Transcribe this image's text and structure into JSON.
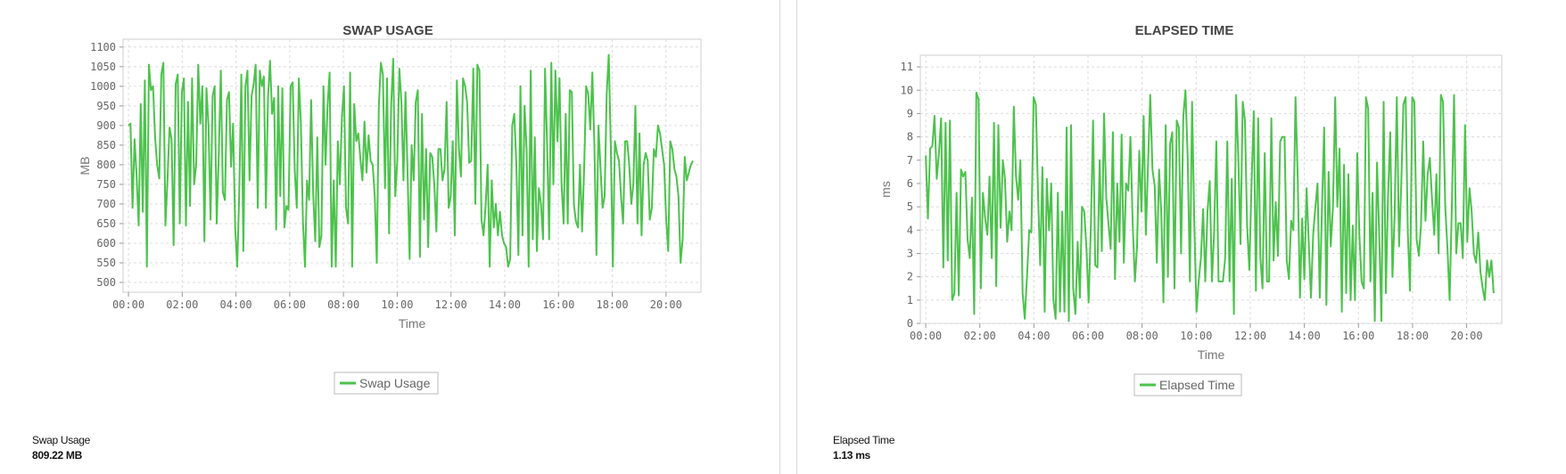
{
  "colors": {
    "series": "#4cc24c",
    "grid": "#dcdcdc"
  },
  "chart_data": [
    {
      "type": "line",
      "title": "SWAP USAGE",
      "xlabel": "Time",
      "ylabel": "MB",
      "x_ticks": [
        "00:00",
        "02:00",
        "04:00",
        "06:00",
        "08:00",
        "10:00",
        "12:00",
        "14:00",
        "16:00",
        "18:00",
        "20:00"
      ],
      "y_ticks": [
        "500",
        "550",
        "600",
        "650",
        "700",
        "750",
        "800",
        "850",
        "900",
        "950",
        "1000",
        "1050",
        "1100"
      ],
      "x_range_hours": [
        -0.2,
        21.3
      ],
      "ylim": [
        475,
        1120
      ],
      "grid": true,
      "legend": "bottom",
      "series": [
        {
          "name": "Swap Usage",
          "values": [
            900,
            905,
            690,
            865,
            770,
            645,
            955,
            680,
            1015,
            540,
            1055,
            990,
            1000,
            870,
            800,
            765,
            1030,
            1060,
            645,
            760,
            895,
            865,
            595,
            1005,
            1030,
            650,
            985,
            1020,
            645,
            960,
            695,
            1020,
            750,
            800,
            1055,
            905,
            1000,
            605,
            995,
            900,
            660,
            975,
            1000,
            650,
            825,
            1040,
            730,
            710,
            965,
            985,
            795,
            905,
            640,
            540,
            730,
            1030,
            580,
            1000,
            1040,
            760,
            975,
            1005,
            1055,
            690,
            1040,
            1000,
            1025,
            690,
            970,
            1065,
            930,
            970,
            635,
            1000,
            720,
            995,
            640,
            695,
            685,
            1000,
            1010,
            785,
            690,
            1020,
            905,
            655,
            540,
            760,
            710,
            965,
            725,
            605,
            870,
            590,
            620,
            1000,
            800,
            950,
            1035,
            540,
            760,
            540,
            860,
            750,
            920,
            1000,
            690,
            650,
            1035,
            540,
            955,
            860,
            880,
            815,
            760,
            910,
            780,
            875,
            810,
            800,
            720,
            550,
            950,
            1060,
            1030,
            740,
            1020,
            625,
            950,
            1070,
            720,
            810,
            1045,
            960,
            760,
            985,
            780,
            560,
            850,
            760,
            960,
            990,
            565,
            930,
            660,
            840,
            590,
            830,
            820,
            750,
            630,
            840,
            840,
            760,
            790,
            960,
            690,
            720,
            860,
            620,
            1015,
            840,
            770,
            1020,
            1000,
            960,
            805,
            810,
            1045,
            700,
            1055,
            1040,
            660,
            620,
            695,
            800,
            540,
            760,
            640,
            700,
            620,
            680,
            620,
            600,
            590,
            540,
            560,
            900,
            930,
            800,
            570,
            1000,
            620,
            950,
            840,
            540,
            1040,
            610,
            870,
            580,
            740,
            700,
            610,
            1045,
            850,
            610,
            1060,
            750,
            1040,
            860,
            1020,
            750,
            650,
            930,
            650,
            990,
            985,
            700,
            655,
            640,
            800,
            630,
            790,
            1000,
            980,
            890,
            1035,
            850,
            570,
            900,
            790,
            690,
            720,
            980,
            1080,
            850,
            540,
            860,
            830,
            810,
            720,
            650,
            860,
            860,
            800,
            700,
            750,
            950,
            650,
            880,
            620,
            800,
            830,
            810,
            660,
            690,
            840,
            820,
            900,
            880,
            840,
            800,
            660,
            580,
            860,
            840,
            790,
            770,
            720,
            550,
            610,
            820,
            760,
            780,
            800,
            810
          ]
        }
      ]
    },
    {
      "type": "line",
      "title": "ELAPSED TIME",
      "xlabel": "Time",
      "ylabel": "ms",
      "x_ticks": [
        "00:00",
        "02:00",
        "04:00",
        "06:00",
        "08:00",
        "10:00",
        "12:00",
        "14:00",
        "16:00",
        "18:00",
        "20:00"
      ],
      "y_ticks": [
        "0",
        "1",
        "2",
        "3",
        "4",
        "5",
        "6",
        "7",
        "8",
        "9",
        "10",
        "11"
      ],
      "x_range_hours": [
        -0.2,
        21.3
      ],
      "ylim": [
        0,
        11.5
      ],
      "grid": true,
      "legend": "bottom",
      "series": [
        {
          "name": "Elapsed Time",
          "values": [
            7.2,
            4.5,
            7.5,
            7.6,
            8.9,
            6.2,
            7.3,
            8.8,
            2.4,
            8.6,
            2.7,
            8.7,
            1.0,
            1.3,
            5.6,
            1.2,
            6.6,
            6.3,
            6.5,
            3.6,
            2.8,
            5.4,
            0.4,
            9.9,
            9.6,
            1.5,
            5.6,
            4.5,
            3.8,
            6.3,
            2.8,
            8.6,
            1.6,
            8.5,
            4.1,
            7.0,
            6.2,
            3.5,
            4.8,
            4.0,
            9.3,
            6.3,
            5.3,
            7.0,
            1.3,
            0.2,
            2.0,
            4.0,
            3.9,
            9.7,
            9.4,
            5.5,
            2.5,
            6.7,
            0.5,
            6.2,
            4.0,
            6.0,
            1.0,
            0.2,
            5.6,
            0.5,
            4.8,
            0.5,
            8.4,
            0.1,
            8.5,
            1.5,
            0.4,
            3.5,
            1.1,
            5.0,
            4.8,
            3.2,
            0.9,
            4.1,
            8.7,
            2.5,
            2.4,
            7.0,
            3.1,
            9.0,
            5.4,
            4.3,
            3.2,
            8.2,
            1.9,
            6.0,
            3.5,
            8.1,
            2.6,
            6.0,
            5.7,
            8.0,
            4.3,
            1.8,
            3.3,
            7.4,
            4.8,
            8.9,
            3.8,
            6.9,
            9.8,
            6.6,
            5.9,
            2.6,
            6.6,
            4.7,
            0.9,
            8.5,
            2.0,
            7.7,
            8.2,
            1.5,
            8.7,
            8.4,
            3.0,
            8.9,
            10.0,
            7.1,
            1.8,
            9.5,
            4.3,
            0.5,
            1.8,
            2.8,
            4.9,
            1.8,
            4.8,
            6.1,
            1.8,
            3.9,
            7.8,
            1.8,
            1.8,
            1.8,
            2.8,
            7.8,
            1.8,
            6.2,
            0.4,
            9.8,
            7.1,
            3.4,
            9.5,
            8.7,
            4.2,
            2.3,
            6.0,
            9.1,
            1.4,
            8.8,
            2.8,
            1.5,
            7.3,
            1.8,
            1.8,
            8.8,
            2.7,
            5.2,
            2.9,
            7.8,
            8.0,
            8.0,
            2.7,
            1.9,
            4.4,
            4.0,
            9.7,
            6.2,
            1.1,
            4.5,
            1.9,
            5.8,
            3.4,
            1.1,
            3.8,
            5.0,
            6.0,
            1.1,
            5.0,
            8.4,
            0.8,
            6.5,
            3.3,
            5.0,
            9.7,
            5.0,
            7.5,
            0.5,
            6.8,
            1.3,
            6.4,
            1.0,
            4.2,
            1.0,
            7.3,
            3.8,
            1.8,
            1.5,
            9.7,
            9.2,
            1.8,
            5.6,
            0.1,
            6.9,
            3.9,
            0.1,
            9.5,
            1.3,
            5.4,
            8.2,
            2.0,
            4.6,
            9.7,
            3.3,
            5.9,
            9.4,
            9.7,
            3.9,
            1.4,
            9.7,
            9.5,
            3.6,
            2.9,
            4.2,
            7.8,
            4.4,
            6.4,
            7.1,
            5.3,
            3.8,
            6.4,
            3.0,
            9.8,
            9.5,
            5.0,
            3.2,
            1.0,
            5.0,
            9.8,
            3.0,
            4.3,
            4.3,
            2.8,
            8.5,
            3.5,
            5.8,
            4.8,
            3.0,
            2.6,
            3.9,
            2.2,
            1.5,
            1.0,
            2.7,
            2.0,
            2.7,
            1.3
          ]
        }
      ]
    }
  ],
  "summary": [
    {
      "label": "Swap Usage",
      "value": "809.22 MB"
    },
    {
      "label": "Elapsed Time",
      "value": "1.13 ms"
    }
  ]
}
